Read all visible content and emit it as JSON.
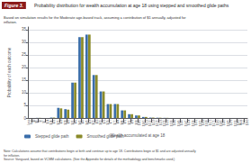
{
  "chart_data": {
    "type": "bar",
    "title_label": "Figure 3.",
    "title": "Probability distribution for wealth accumulation at age 18 using stepped and smoothed glide paths",
    "subtitle": "Based on simulation results for the Moderate age-based track, assuming a contribution of $1 annually, adjusted for inflation.",
    "xlabel": "Wealth accumulated at age 18",
    "ylabel": "Probability of each outcome",
    "notes": [
      "Note: Calculations assume that contributions begin at birth and continue up to age 18. Contributions begin at $1 and are adjusted annually for inflation.",
      "Source: Vanguard, based on VCMM calculations. (See the Appendix for details of the methodology and benchmarks used.)"
    ],
    "categories": [
      "Less\nthan\n$0",
      "$0-\n$7",
      "$7-\n$14",
      "$14-\n$21",
      "$21-\n$28",
      "$28-\n$35",
      "$35-\n$42",
      "$42-\n$49",
      "$49-\n$56",
      "$56-\n$63",
      "$63-\n$70",
      "$70-\n$77",
      "$77-\n$84",
      "$84-\n$91",
      "$91-\n$98",
      "$98-\n$105",
      "$105-\n$112",
      "$112-\n$119",
      "$119-\n$126",
      "$126-\n$133",
      "$133-\n$140",
      "$140-\n$147",
      "$147-\n$154",
      "$154-\n$161",
      "$161-\n$168",
      "$168-\n$175",
      "$175-\n$182",
      "$182-\n$189",
      "$189-\n$196",
      "$196-\n$203",
      "More\nthan\n$203"
    ],
    "series": [
      {
        "name": "Stepped glide path",
        "color": "#3B6EAA",
        "values": [
          0.0,
          0.05,
          0.0,
          0.15,
          4.0,
          3.5,
          14.0,
          32.0,
          33.0,
          17.0,
          10.5,
          5.5,
          5.5,
          3.0,
          1.5,
          1.0,
          0.4,
          0.15,
          0.1,
          0.05,
          0.0,
          0.0,
          0.0,
          0.0,
          0.0,
          0.0,
          0.0,
          0.0,
          0.0,
          0.0,
          0.0
        ]
      },
      {
        "name": "Smoothed glide path",
        "color": "#8B8B2A",
        "values": [
          0.0,
          0.05,
          0.0,
          0.15,
          3.8,
          3.3,
          14.0,
          32.0,
          33.0,
          17.0,
          10.5,
          5.5,
          5.5,
          3.0,
          1.5,
          1.0,
          0.4,
          0.15,
          0.1,
          0.05,
          0.0,
          0.0,
          0.0,
          0.0,
          0.0,
          0.0,
          0.0,
          0.0,
          0.0,
          0.0,
          0.0
        ]
      }
    ],
    "ylim": [
      0,
      36
    ],
    "yticks": [
      0,
      5,
      10,
      15,
      20,
      25,
      30,
      35
    ],
    "grid": true,
    "legend": "lower left"
  }
}
